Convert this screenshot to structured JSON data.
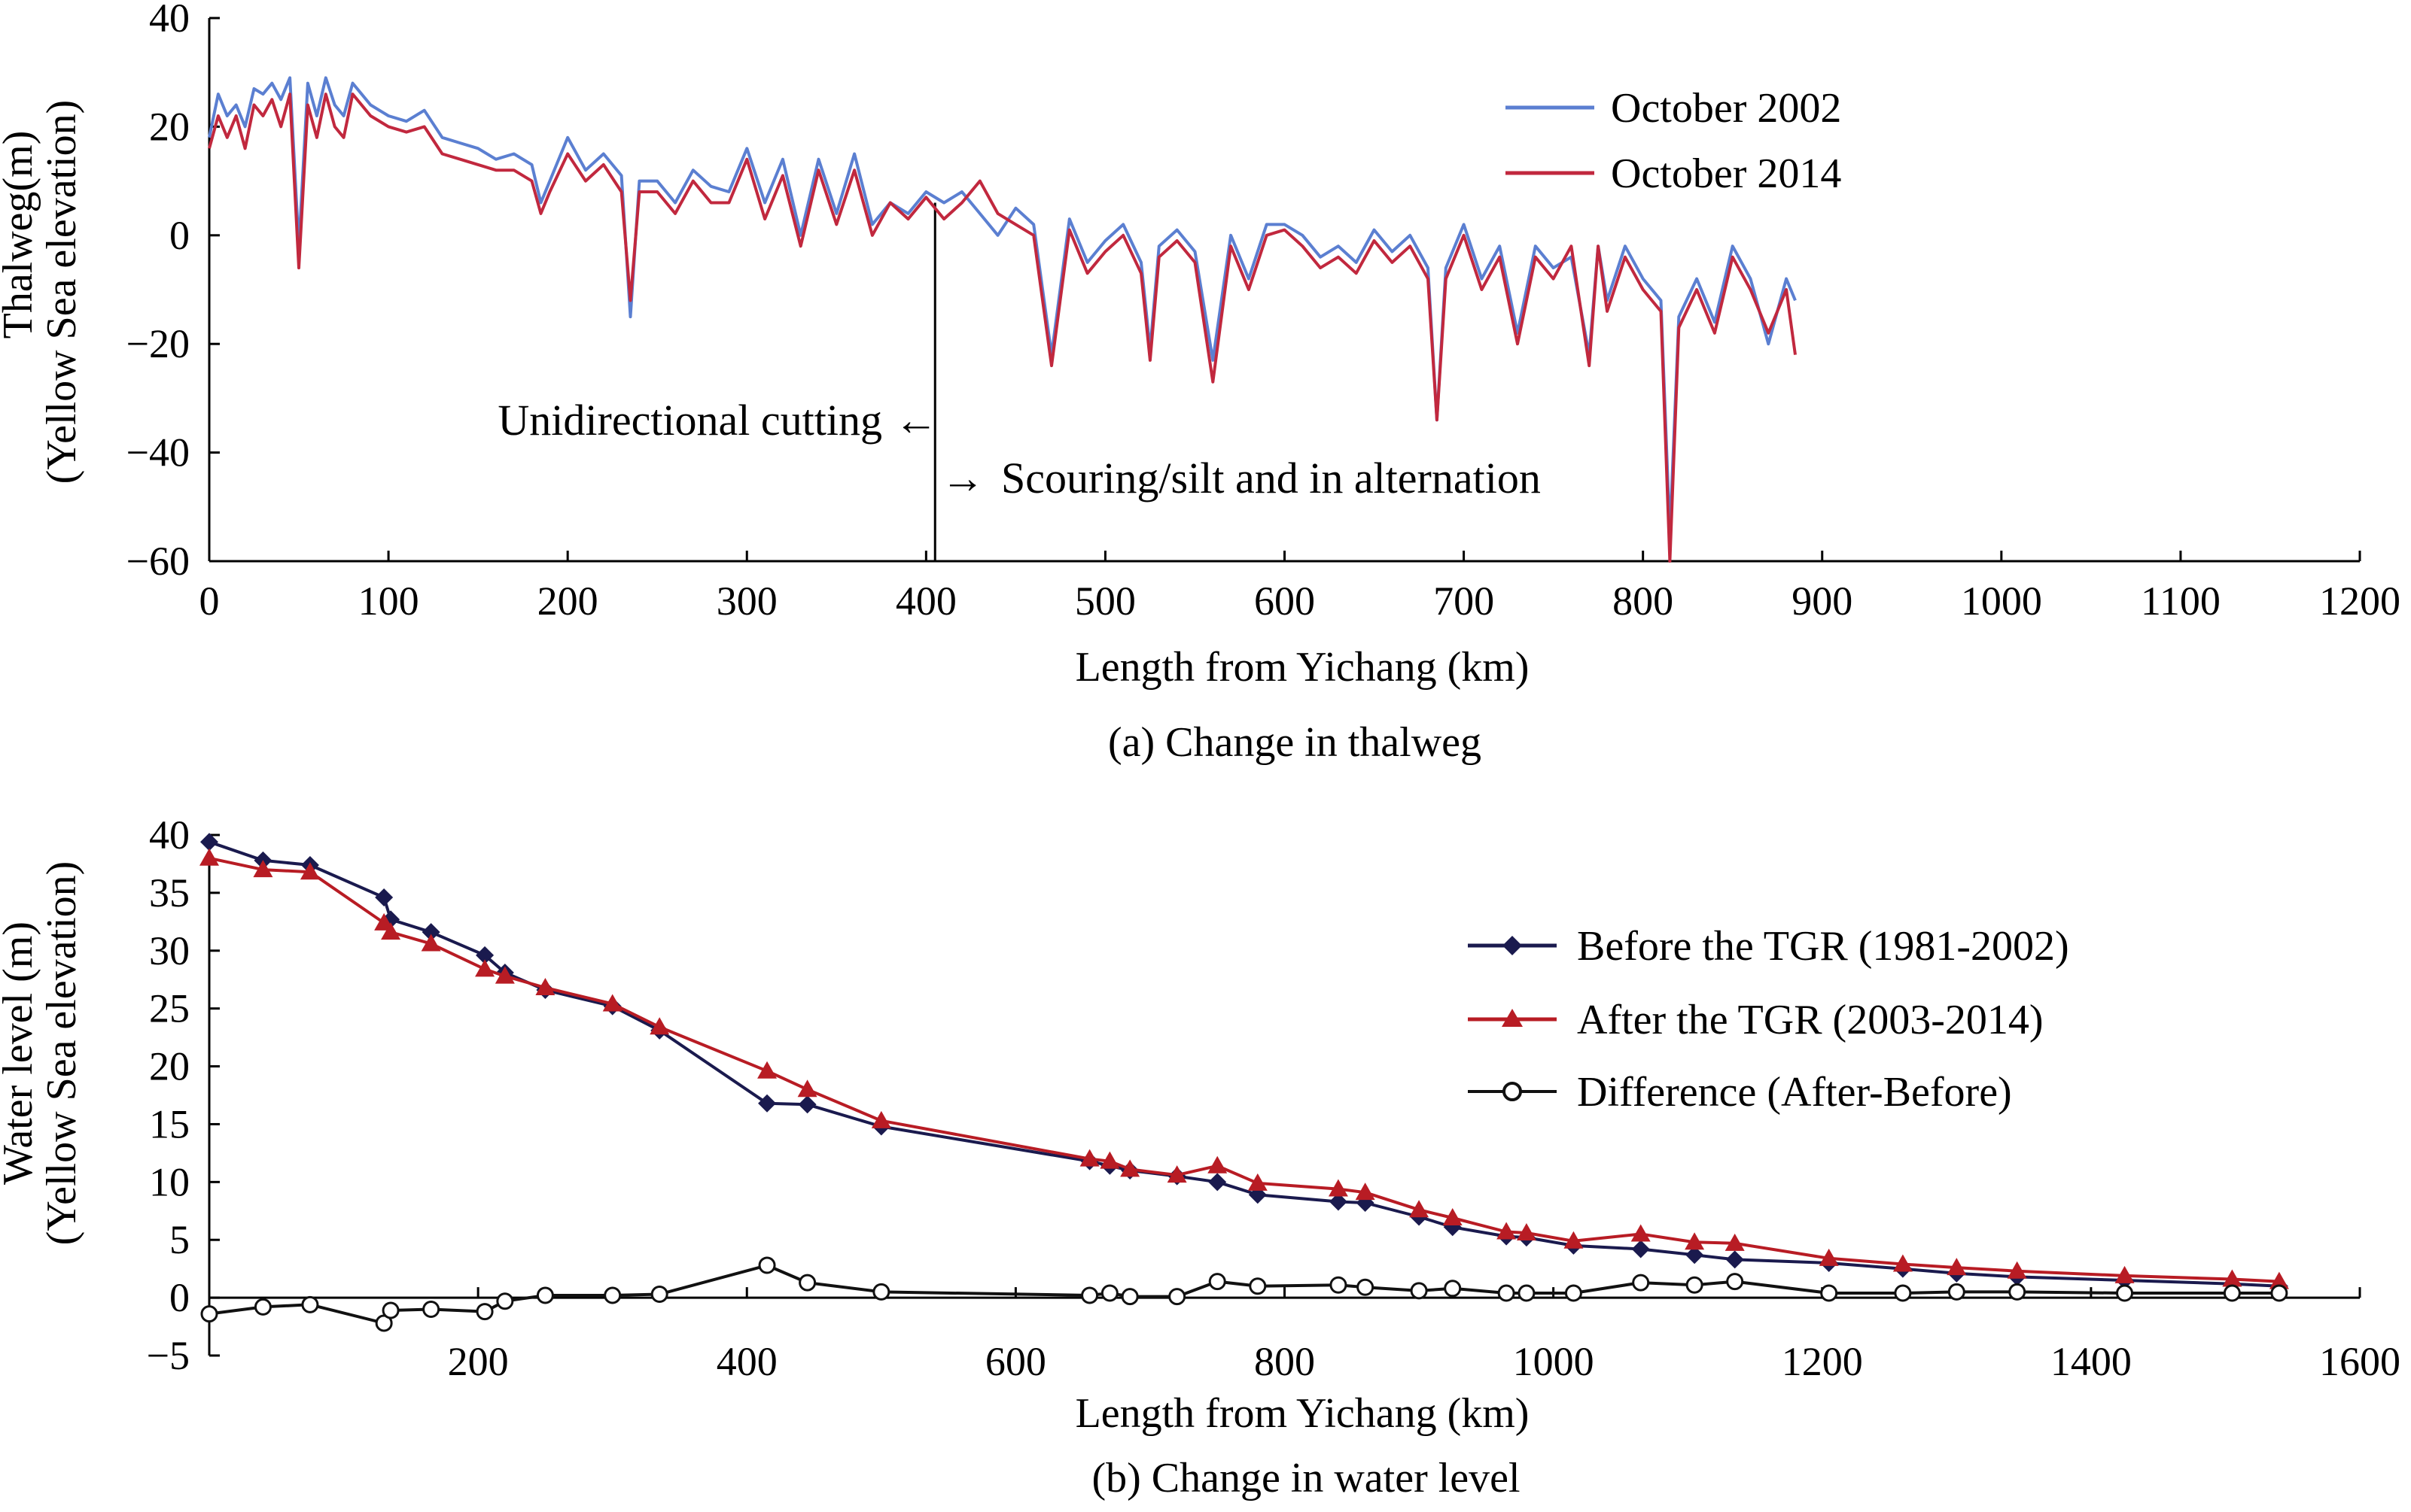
{
  "chart_data": [
    {
      "panel": "a",
      "type": "line",
      "caption": "(a) Change in thalweg",
      "xlabel": "Length from Yichang (km)",
      "ylabel": [
        "Thalweg(m)",
        "(Yellow Sea elevation)"
      ],
      "xlim": [
        0,
        1200
      ],
      "ylim": [
        -60,
        40
      ],
      "xticks": [
        0,
        100,
        200,
        300,
        400,
        500,
        600,
        700,
        800,
        900,
        1000,
        1100,
        1200
      ],
      "yticks": [
        40,
        20,
        0,
        -20,
        -40,
        -60
      ],
      "ytick_labels": [
        "40",
        "20",
        "0",
        "−20",
        "−40",
        "−60"
      ],
      "grid": false,
      "legend_position": "top-right",
      "annotations": [
        {
          "text": "Unidirectional cutting",
          "arrow": "←"
        },
        {
          "text": "Scouring/silt and in alternation",
          "arrow": "→"
        }
      ],
      "divider_x": 405,
      "series": [
        {
          "name": "October 2002",
          "color": "#5b7fd1",
          "x": [
            0,
            5,
            10,
            15,
            20,
            25,
            30,
            35,
            40,
            45,
            50,
            55,
            60,
            65,
            70,
            75,
            80,
            90,
            100,
            110,
            120,
            130,
            140,
            150,
            160,
            170,
            180,
            185,
            190,
            200,
            210,
            220,
            230,
            235,
            240,
            250,
            260,
            270,
            280,
            290,
            300,
            310,
            320,
            330,
            340,
            350,
            360,
            370,
            380,
            390,
            400,
            410,
            420,
            430,
            440,
            450,
            460,
            470,
            480,
            490,
            500,
            510,
            520,
            525,
            530,
            540,
            550,
            560,
            570,
            580,
            590,
            600,
            610,
            620,
            630,
            640,
            650,
            660,
            670,
            680,
            685,
            690,
            700,
            710,
            720,
            730,
            740,
            750,
            760,
            770,
            775,
            780,
            790,
            800,
            810,
            815,
            820,
            830,
            840,
            850,
            860,
            870,
            880,
            885
          ],
          "y": [
            18,
            26,
            22,
            24,
            20,
            27,
            26,
            28,
            25,
            29,
            -2,
            28,
            22,
            29,
            24,
            22,
            28,
            24,
            22,
            21,
            23,
            18,
            17,
            16,
            14,
            15,
            13,
            6,
            10,
            18,
            12,
            15,
            11,
            -15,
            10,
            10,
            6,
            12,
            9,
            8,
            16,
            6,
            14,
            0,
            14,
            4,
            15,
            2,
            6,
            4,
            8,
            6,
            8,
            4,
            0,
            5,
            2,
            -22,
            3,
            -5,
            -1,
            2,
            -5,
            -21,
            -2,
            1,
            -3,
            -23,
            0,
            -8,
            2,
            2,
            0,
            -4,
            -2,
            -5,
            1,
            -3,
            0,
            -6,
            -34,
            -6,
            2,
            -8,
            -2,
            -18,
            -2,
            -6,
            -4,
            -22,
            -2,
            -12,
            -2,
            -8,
            -12,
            -55,
            -15,
            -8,
            -16,
            -2,
            -8,
            -20,
            -8,
            -12
          ]
        },
        {
          "name": "October 2014",
          "color": "#c1283e",
          "x": [
            0,
            5,
            10,
            15,
            20,
            25,
            30,
            35,
            40,
            45,
            50,
            55,
            60,
            65,
            70,
            75,
            80,
            90,
            100,
            110,
            120,
            130,
            140,
            150,
            160,
            170,
            180,
            185,
            190,
            200,
            210,
            220,
            230,
            235,
            240,
            250,
            260,
            270,
            280,
            290,
            300,
            310,
            320,
            330,
            340,
            350,
            360,
            370,
            380,
            390,
            400,
            410,
            420,
            430,
            440,
            450,
            460,
            470,
            480,
            490,
            500,
            510,
            520,
            525,
            530,
            540,
            550,
            560,
            570,
            580,
            590,
            600,
            610,
            620,
            630,
            640,
            650,
            660,
            670,
            680,
            685,
            690,
            700,
            710,
            720,
            730,
            740,
            750,
            760,
            770,
            775,
            780,
            790,
            800,
            810,
            815,
            820,
            830,
            840,
            850,
            860,
            870,
            880,
            885
          ],
          "y": [
            16,
            22,
            18,
            22,
            16,
            24,
            22,
            25,
            20,
            26,
            -6,
            24,
            18,
            26,
            20,
            18,
            26,
            22,
            20,
            19,
            20,
            15,
            14,
            13,
            12,
            12,
            10,
            4,
            8,
            15,
            10,
            13,
            8,
            -12,
            8,
            8,
            4,
            10,
            6,
            6,
            14,
            3,
            11,
            -2,
            12,
            2,
            12,
            0,
            6,
            3,
            7,
            3,
            6,
            10,
            4,
            2,
            0,
            -24,
            1,
            -7,
            -3,
            0,
            -7,
            -23,
            -4,
            -1,
            -5,
            -27,
            -2,
            -10,
            0,
            1,
            -2,
            -6,
            -4,
            -7,
            -1,
            -5,
            -2,
            -8,
            -34,
            -8,
            0,
            -10,
            -4,
            -20,
            -4,
            -8,
            -2,
            -24,
            -2,
            -14,
            -4,
            -10,
            -14,
            -60,
            -17,
            -10,
            -18,
            -4,
            -10,
            -18,
            -10,
            -22
          ]
        }
      ]
    },
    {
      "panel": "b",
      "type": "line",
      "caption": "(b) Change in water level",
      "xlabel": "Length from Yichang (km)",
      "ylabel": [
        "Water level (m)",
        "(Yellow  Sea elevation)"
      ],
      "xlim": [
        0,
        1600
      ],
      "ylim": [
        -5,
        40
      ],
      "xticks": [
        200,
        400,
        600,
        800,
        1000,
        1200,
        1400,
        1600
      ],
      "yticks": [
        40,
        35,
        30,
        25,
        20,
        15,
        10,
        5,
        0,
        -5
      ],
      "ytick_labels": [
        "40",
        "35",
        "30",
        "25",
        "20",
        "15",
        "10",
        "5",
        "0",
        "−5"
      ],
      "grid": false,
      "legend_position": "right",
      "series": [
        {
          "name": "Before  the TGR (1981-2002)",
          "color": "#1a1a4e",
          "marker": "diamond",
          "x": [
            0,
            40,
            75,
            130,
            135,
            165,
            205,
            220,
            250,
            300,
            335,
            415,
            445,
            500,
            655,
            670,
            685,
            720,
            750,
            780,
            840,
            860,
            900,
            925,
            965,
            980,
            1015,
            1065,
            1105,
            1135,
            1205,
            1260,
            1300,
            1345,
            1425,
            1505,
            1540
          ],
          "y": [
            39.4,
            37.8,
            37.4,
            34.6,
            32.7,
            31.6,
            29.6,
            28.1,
            26.6,
            25.2,
            23.1,
            16.8,
            16.7,
            14.8,
            11.8,
            11.4,
            11.0,
            10.5,
            10.0,
            8.9,
            8.3,
            8.2,
            7.0,
            6.1,
            5.3,
            5.2,
            4.5,
            4.2,
            3.7,
            3.3,
            3.0,
            2.5,
            2.1,
            1.8,
            1.5,
            1.2,
            1.0
          ]
        },
        {
          "name": "After the TGR (2003-2014)",
          "color": "#b81c24",
          "marker": "triangle",
          "x": [
            0,
            40,
            75,
            130,
            135,
            165,
            205,
            220,
            250,
            300,
            335,
            415,
            445,
            500,
            655,
            670,
            685,
            720,
            750,
            780,
            840,
            860,
            900,
            925,
            965,
            980,
            1015,
            1065,
            1105,
            1135,
            1205,
            1260,
            1300,
            1345,
            1425,
            1505,
            1540
          ],
          "y": [
            38.0,
            37.0,
            36.8,
            32.4,
            31.6,
            30.6,
            28.4,
            27.8,
            26.8,
            25.4,
            23.4,
            19.6,
            18.0,
            15.3,
            12.0,
            11.8,
            11.1,
            10.6,
            11.4,
            9.9,
            9.4,
            9.1,
            7.6,
            6.9,
            5.7,
            5.6,
            4.9,
            5.5,
            4.8,
            4.7,
            3.4,
            2.9,
            2.6,
            2.3,
            1.9,
            1.6,
            1.4
          ]
        },
        {
          "name": "Difference (After-Before)",
          "color": "#111111",
          "marker": "open-circle",
          "x": [
            0,
            40,
            75,
            130,
            135,
            165,
            205,
            220,
            250,
            300,
            335,
            415,
            445,
            500,
            655,
            670,
            685,
            720,
            750,
            780,
            840,
            860,
            900,
            925,
            965,
            980,
            1015,
            1065,
            1105,
            1135,
            1205,
            1260,
            1300,
            1345,
            1425,
            1505,
            1540
          ],
          "y": [
            -1.4,
            -0.8,
            -0.6,
            -2.2,
            -1.1,
            -1.0,
            -1.2,
            -0.3,
            0.2,
            0.2,
            0.3,
            2.8,
            1.3,
            0.5,
            0.2,
            0.4,
            0.1,
            0.1,
            1.4,
            1.0,
            1.1,
            0.9,
            0.6,
            0.8,
            0.4,
            0.4,
            0.4,
            1.3,
            1.1,
            1.4,
            0.4,
            0.4,
            0.5,
            0.5,
            0.4,
            0.4,
            0.4
          ]
        }
      ]
    }
  ]
}
